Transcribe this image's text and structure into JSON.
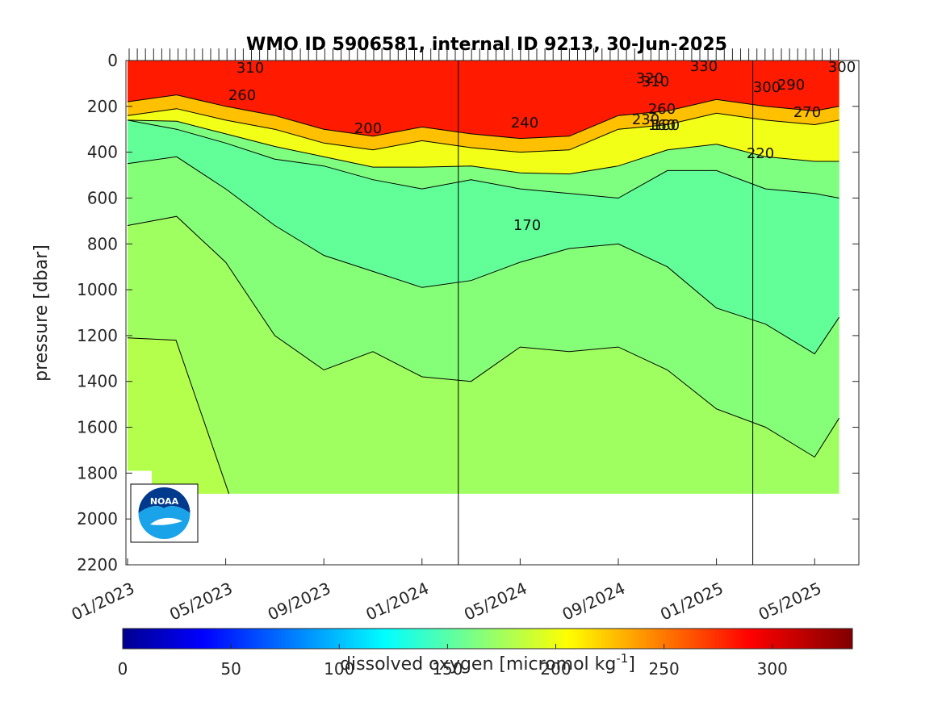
{
  "chart_data": {
    "type": "heatmap",
    "title": "WMO ID 5906581, internal ID 9213, 30-Jun-2025",
    "xlabel": "",
    "ylabel": "pressure [dbar]",
    "ylim": [
      2200,
      0
    ],
    "yticks": [
      "0",
      "200",
      "400",
      "600",
      "800",
      "1000",
      "1200",
      "1400",
      "1600",
      "1800",
      "2000",
      "2200"
    ],
    "xticks": [
      "01/2023",
      "05/2023",
      "09/2023",
      "01/2024",
      "05/2024",
      "09/2024",
      "01/2025",
      "05/2025"
    ],
    "year_boundaries": [
      "01/2024",
      "01/2025"
    ],
    "colorbar": {
      "label": "dissolved oxygen [micromol kg",
      "label_superscript": "-1",
      "label_end": "]",
      "range": [
        0,
        337
      ],
      "ticks": [
        "0",
        "50",
        "100",
        "150",
        "200",
        "250",
        "300"
      ],
      "colormap": "jet"
    },
    "bands": [
      {
        "min": 300,
        "max": 340,
        "color": "#ff1a00"
      },
      {
        "min": 260,
        "max": 300,
        "color": "#ff8a00"
      },
      {
        "min": 230,
        "max": 260,
        "color": "#ffc000"
      },
      {
        "min": 210,
        "max": 230,
        "color": "#f2ff16"
      },
      {
        "min": 180,
        "max": 210,
        "color": "#7fff80"
      },
      {
        "min": 170,
        "max": 180,
        "color": "#62ff98"
      },
      {
        "min": 180,
        "max": 190,
        "color": "#86ff78"
      },
      {
        "min": 190,
        "max": 200,
        "color": "#a0ff60"
      },
      {
        "min": 200,
        "max": 210,
        "color": "#b4ff4c"
      }
    ],
    "boundaries": {
      "date": [
        "2023-01",
        "2023-03",
        "2023-05",
        "2023-07",
        "2023-09",
        "2023-11",
        "2024-01",
        "2024-03",
        "2024-05",
        "2024-07",
        "2024-09",
        "2024-11",
        "2025-01",
        "2025-03",
        "2025-05",
        "2025-06"
      ],
      "surface_layer_bottom": [
        180,
        150,
        200,
        240,
        300,
        330,
        290,
        320,
        340,
        330,
        240,
        220,
        170,
        200,
        220,
        200
      ],
      "oxycline_bottom": [
        260,
        300,
        360,
        430,
        460,
        520,
        560,
        520,
        560,
        580,
        600,
        480,
        480,
        560,
        580,
        600
      ],
      "iso_180": [
        450,
        420,
        560,
        720,
        850,
        920,
        990,
        960,
        880,
        820,
        800,
        900,
        1080,
        1150,
        1280,
        1120
      ],
      "iso_190": [
        720,
        680,
        880,
        1200,
        1350,
        1270,
        1380,
        1400,
        1250,
        1270,
        1250,
        1350,
        1520,
        1600,
        1730,
        1560
      ],
      "iso_200": [
        1210,
        1220,
        1890
      ],
      "data_bottom": 1890
    },
    "contour_labels": [
      "310",
      "260",
      "200",
      "240",
      "170",
      "320",
      "310",
      "330",
      "300",
      "290",
      "270",
      "260",
      "230",
      "160",
      "180",
      "220",
      "300"
    ]
  }
}
